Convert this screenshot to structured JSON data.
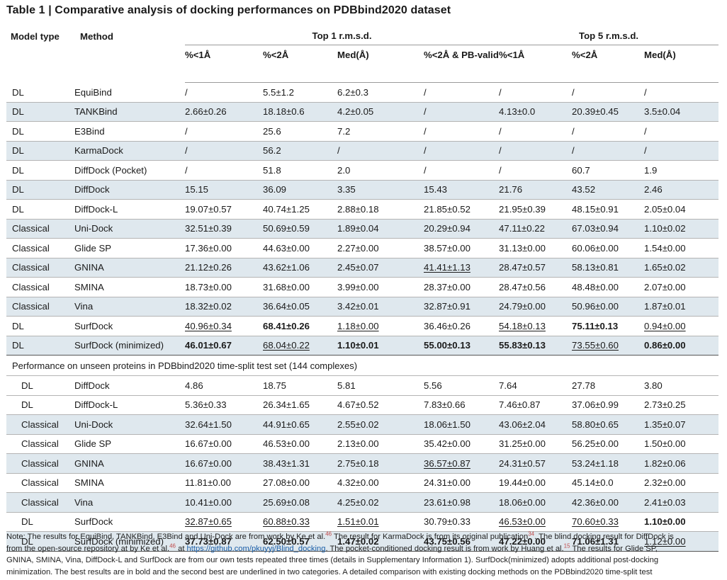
{
  "title": "Table 1 | Comparative analysis of docking performances on PDBbind2020 dataset",
  "header": {
    "model_type": "Model type",
    "method": "Method",
    "group_top1": "Top 1 r.m.s.d.",
    "group_top5": "Top 5 r.m.s.d.",
    "cols": [
      "%<1Å",
      "%<2Å",
      "Med(Å)",
      "%<2Å & PB-valid",
      "%<1Å",
      "%<2Å",
      "Med(Å)"
    ]
  },
  "section1_rows": [
    {
      "type": "DL",
      "method": "EquiBind",
      "v": [
        "/",
        "5.5±1.2",
        "6.2±0.3",
        "/",
        "/",
        "/",
        "/"
      ]
    },
    {
      "type": "DL",
      "method": "TANKBind",
      "v": [
        "2.66±0.26",
        "18.18±0.6",
        "4.2±0.05",
        "/",
        "4.13±0.0",
        "20.39±0.45",
        "3.5±0.04"
      ]
    },
    {
      "type": "DL",
      "method": "E3Bind",
      "v": [
        "/",
        "25.6",
        "7.2",
        "/",
        "/",
        "/",
        "/"
      ]
    },
    {
      "type": "DL",
      "method": "KarmaDock",
      "v": [
        "/",
        "56.2",
        "/",
        "/",
        "/",
        "/",
        "/"
      ]
    },
    {
      "type": "DL",
      "method": "DiffDock (Pocket)",
      "v": [
        "/",
        "51.8",
        "2.0",
        "/",
        "/",
        "60.7",
        "1.9"
      ]
    },
    {
      "type": "DL",
      "method": "DiffDock",
      "v": [
        "15.15",
        "36.09",
        "3.35",
        "15.43",
        "21.76",
        "43.52",
        "2.46"
      ]
    },
    {
      "type": "DL",
      "method": "DiffDock-L",
      "v": [
        "19.07±0.57",
        "40.74±1.25",
        "2.88±0.18",
        "21.85±0.52",
        "21.95±0.39",
        "48.15±0.91",
        "2.05±0.04"
      ]
    },
    {
      "type": "Classical",
      "method": "Uni-Dock",
      "v": [
        "32.51±0.39",
        "50.69±0.59",
        "1.89±0.04",
        "20.29±0.94",
        "47.11±0.22",
        "67.03±0.94",
        "1.10±0.02"
      ]
    },
    {
      "type": "Classical",
      "method": "Glide SP",
      "v": [
        "17.36±0.00",
        "44.63±0.00",
        "2.27±0.00",
        "38.57±0.00",
        "31.13±0.00",
        "60.06±0.00",
        "1.54±0.00"
      ]
    },
    {
      "type": "Classical",
      "method": "GNINA",
      "v": [
        "21.12±0.26",
        "43.62±1.06",
        "2.45±0.07",
        "41.41±1.13",
        "28.47±0.57",
        "58.13±0.81",
        "1.65±0.02"
      ]
    },
    {
      "type": "Classical",
      "method": "SMINA",
      "v": [
        "18.73±0.00",
        "31.68±0.00",
        "3.99±0.00",
        "28.37±0.00",
        "28.47±0.56",
        "48.48±0.00",
        "2.07±0.00"
      ]
    },
    {
      "type": "Classical",
      "method": "Vina",
      "v": [
        "18.32±0.02",
        "36.64±0.05",
        "3.42±0.01",
        "32.87±0.91",
        "24.79±0.00",
        "50.96±0.00",
        "1.87±0.01"
      ]
    },
    {
      "type": "DL",
      "method": "SurfDock",
      "v": [
        "40.96±0.34",
        "68.41±0.26",
        "1.18±0.00",
        "36.46±0.26",
        "54.18±0.13",
        "75.11±0.13",
        "0.94±0.00"
      ]
    },
    {
      "type": "DL",
      "method": "SurfDock (minimized)",
      "v": [
        "46.01±0.67",
        "68.04±0.22",
        "1.10±0.01",
        "55.00±0.13",
        "55.83±0.13",
        "73.55±0.60",
        "0.86±0.00"
      ]
    }
  ],
  "section2_title": "Performance on unseen proteins in PDBbind2020 time-split test set (144 complexes)",
  "section2_rows": [
    {
      "type": "DL",
      "method": "DiffDock",
      "v": [
        "4.86",
        "18.75",
        "5.81",
        "5.56",
        "7.64",
        "27.78",
        "3.80"
      ]
    },
    {
      "type": "DL",
      "method": "DiffDock-L",
      "v": [
        "5.36±0.33",
        "26.34±1.65",
        "4.67±0.52",
        "7.83±0.66",
        "7.46±0.87",
        "37.06±0.99",
        "2.73±0.25"
      ]
    },
    {
      "type": "Classical",
      "method": "Uni-Dock",
      "v": [
        "32.64±1.50",
        "44.91±0.65",
        "2.55±0.02",
        "18.06±1.50",
        "43.06±2.04",
        "58.80±0.65",
        "1.35±0.07"
      ]
    },
    {
      "type": "Classical",
      "method": "Glide SP",
      "v": [
        "16.67±0.00",
        "46.53±0.00",
        "2.13±0.00",
        "35.42±0.00",
        "31.25±0.00",
        "56.25±0.00",
        "1.50±0.00"
      ]
    },
    {
      "type": "Classical",
      "method": "GNINA",
      "v": [
        "16.67±0.00",
        "38.43±1.31",
        "2.75±0.18",
        "36.57±0.87",
        "24.31±0.57",
        "53.24±1.18",
        "1.82±0.06"
      ]
    },
    {
      "type": "Classical",
      "method": "SMINA",
      "v": [
        "11.81±0.00",
        "27.08±0.00",
        "4.32±0.00",
        "24.31±0.00",
        "19.44±0.00",
        "45.14±0.0",
        "2.32±0.00"
      ]
    },
    {
      "type": "Classical",
      "method": "Vina",
      "v": [
        "10.41±0.00",
        "25.69±0.08",
        "4.25±0.02",
        "23.61±0.98",
        "18.06±0.00",
        "42.36±0.00",
        "2.41±0.03"
      ]
    },
    {
      "type": "DL",
      "method": "SurfDock",
      "v": [
        "32.87±0.65",
        "60.88±0.33",
        "1.51±0.01",
        "30.79±0.33",
        "46.53±0.00",
        "70.60±0.33",
        "1.10±0.00"
      ]
    },
    {
      "type": "DL",
      "method": "SurfDock (minimized)",
      "v": [
        "37.73±0.87",
        "62.50±0.57",
        "1.47±0.02",
        "43.75±0.56",
        "47.22±0.00",
        "71.06±1.31",
        "1.12±0.00"
      ]
    }
  ],
  "note": {
    "l1a": "Note: The results for EquiBind, TANKBind, E3Bind and Uni-Dock are from work by Ke et al.",
    "r46a": "46",
    "l1b": " The result for KarmaDock is from its original publication",
    "r34": "34",
    "l1c": ". The blind docking result for DiffDock is",
    "l2a": "from the open-source repository at by Ke et al.",
    "r46b": "46",
    "l2b": " at ",
    "link": "https://github.com/pkuyyj/Blind_docking",
    "l2c": ". The pocket-conditioned docking result is from work by Huang et al.",
    "r15": "15",
    "l2d": " The results for Glide SP,",
    "l3": "GNINA, SMINA, Vina, DiffDock-L and SurfDock are from our own tests repeated three times (details in Supplementary Information 1). SurfDock(minimized) adopts additional post-docking",
    "l4": "minimization. The best results are in bold and the second best are underlined in two categories. A detailed comparison with existing docking methods on the PDBbind2020 time-split test"
  }
}
